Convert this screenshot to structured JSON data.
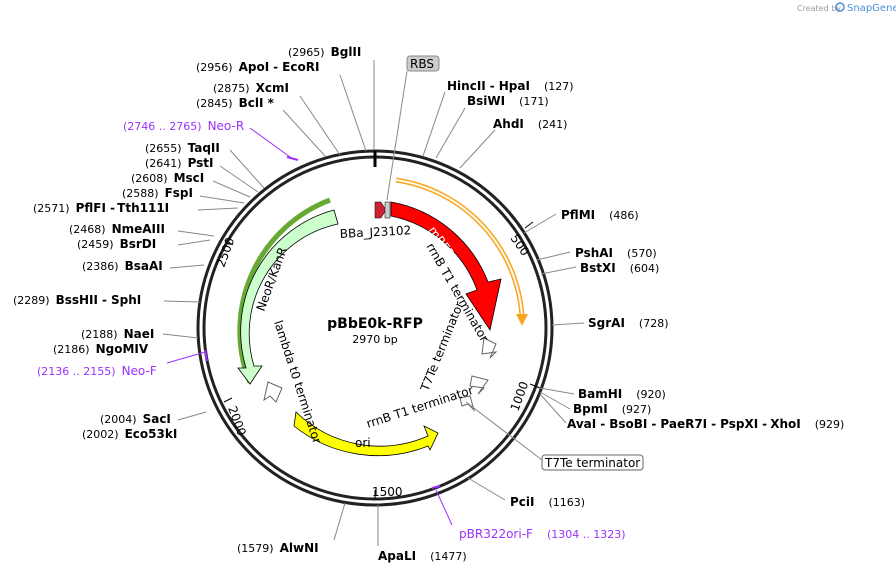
{
  "branding": {
    "created_by": "Created by",
    "brand": "SnapGene"
  },
  "plasmid": {
    "name": "pBbE0k-RFP",
    "length_label": "2970 bp"
  },
  "ticks": [
    "500",
    "1000",
    "1500",
    "2000",
    "2500"
  ],
  "features": {
    "rbs": "RBS",
    "bba": "BBa_J23102",
    "mrfp1": "mRFP1",
    "rrnb_top": "rrnB T1 terminator",
    "t7te_inner": "T7Te terminator",
    "rrnb_bottom": "rrnB T1 terminator",
    "ori": "ori",
    "lambda": "lambda t0 terminator",
    "neor": "NeoR/KanR",
    "t7te_box": "T7Te terminator"
  },
  "sites": {
    "bglii": {
      "pos": "(2965)",
      "name": "BglII"
    },
    "apoi": {
      "pos": "(2956)",
      "name": "ApoI"
    },
    "ecori": {
      "name": "EcoRI"
    },
    "xcmi": {
      "pos": "(2875)",
      "name": "XcmI"
    },
    "bcli": {
      "pos": "(2845)",
      "name": "BclI *"
    },
    "hincii": {
      "name": "HincII"
    },
    "hpai": {
      "name": "HpaI",
      "pos": "(127)"
    },
    "bsiwi": {
      "name": "BsiWI",
      "pos": "(171)"
    },
    "ahdi": {
      "name": "AhdI",
      "pos": "(241)"
    },
    "taqii": {
      "pos": "(2655)",
      "name": "TaqII"
    },
    "psti": {
      "pos": "(2641)",
      "name": "PstI"
    },
    "msci": {
      "pos": "(2608)",
      "name": "MscI"
    },
    "fspi": {
      "pos": "(2588)",
      "name": "FspI"
    },
    "pflfi": {
      "pos": "(2571)",
      "name": "PflFI"
    },
    "tth111i": {
      "name": "Tth111I"
    },
    "nmeaiii": {
      "pos": "(2468)",
      "name": "NmeAIII"
    },
    "bsrdi": {
      "pos": "(2459)",
      "name": "BsrDI"
    },
    "bsaai": {
      "pos": "(2386)",
      "name": "BsaAI"
    },
    "bsshii": {
      "pos": "(2289)",
      "name": "BssHII"
    },
    "sphi": {
      "name": "SphI"
    },
    "naei": {
      "pos": "(2188)",
      "name": "NaeI"
    },
    "ngomiv": {
      "pos": "(2186)",
      "name": "NgoMIV"
    },
    "saci": {
      "pos": "(2004)",
      "name": "SacI"
    },
    "eco53ki": {
      "pos": "(2002)",
      "name": "Eco53kI"
    },
    "pflmi": {
      "name": "PflMI",
      "pos": "(486)"
    },
    "pshai": {
      "name": "PshAI",
      "pos": "(570)"
    },
    "bstxi": {
      "name": "BstXI",
      "pos": "(604)"
    },
    "sgrai": {
      "name": "SgrAI",
      "pos": "(728)"
    },
    "bamhi": {
      "name": "BamHI",
      "pos": "(920)"
    },
    "bpmi": {
      "name": "BpmI",
      "pos": "(927)"
    },
    "avai": {
      "name": "AvaI"
    },
    "bsobi": {
      "name": "BsoBI"
    },
    "paer7i": {
      "name": "PaeR7I"
    },
    "pspxi": {
      "name": "PspXI"
    },
    "xhoi": {
      "name": "XhoI",
      "pos": "(929)"
    },
    "pcii": {
      "name": "PciI",
      "pos": "(1163)"
    },
    "apali": {
      "name": "ApaLI",
      "pos": "(1477)"
    },
    "alwni": {
      "pos": "(1579)",
      "name": "AlwNI"
    }
  },
  "primers": {
    "neor_r": {
      "pos": "(2746 .. 2765)",
      "name": "Neo-R"
    },
    "neo_f": {
      "pos": "(2136 .. 2155)",
      "name": "Neo-F"
    },
    "pbr": {
      "name": "pBR322ori-F",
      "pos": "(1304 .. 1323)"
    }
  },
  "colors": {
    "mrfp1": "#ff0000",
    "promoter": "#cc2233",
    "orange": "#f5a623",
    "neor": "#ccffcc",
    "ori": "#ffff00",
    "primer": "#9b30ff"
  }
}
